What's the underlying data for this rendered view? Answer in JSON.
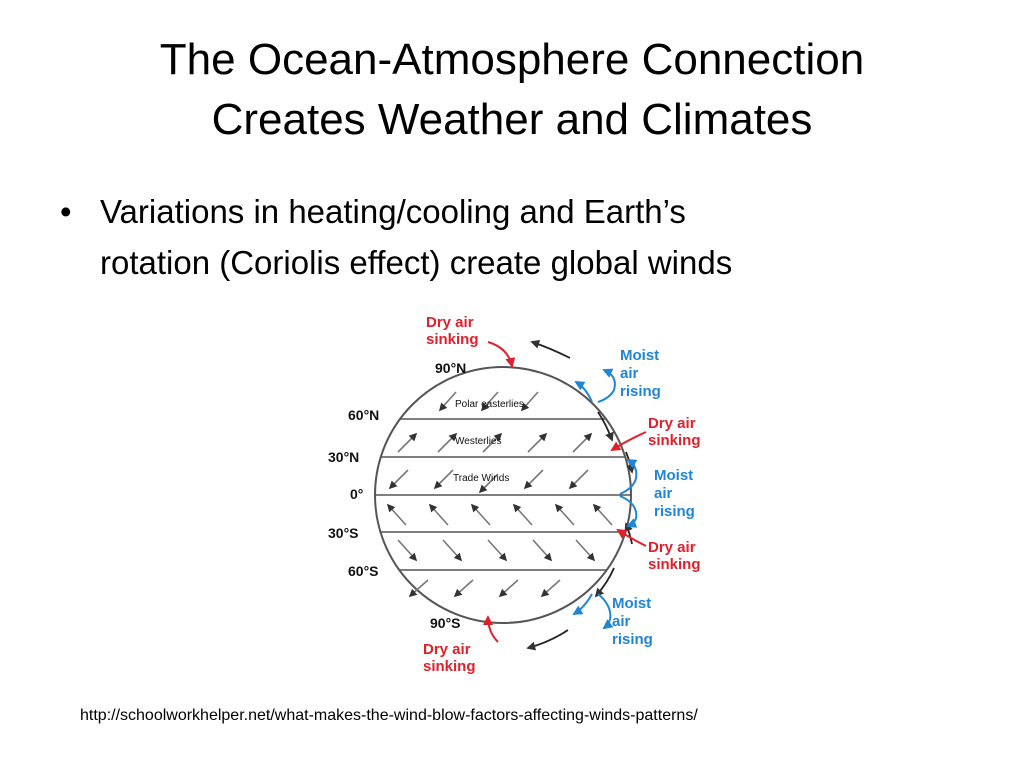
{
  "slide": {
    "title_line1": "The Ocean-Atmosphere Connection",
    "title_line2": "Creates Weather and Climates",
    "bullets": [
      {
        "line1": "Variations in heating/cooling and Earth’s",
        "line2": "rotation (Coriolis effect) create global winds"
      }
    ],
    "source_url": "http://schoolworkhelper.net/what-makes-the-wind-blow-factors-affecting-winds-patterns/"
  },
  "diagram": {
    "latitudes": [
      "90°N",
      "60°N",
      "30°N",
      "0°",
      "30°S",
      "60°S",
      "90°S"
    ],
    "belts": [
      "Polar easterlies",
      "Westerlies",
      "Trade Winds"
    ],
    "dry_air": [
      "Dry air",
      "sinking"
    ],
    "moist_air": [
      "Moist",
      "air",
      "rising"
    ],
    "colors": {
      "dry": "#e0202a",
      "moist": "#1f86d6",
      "globe": "#555555"
    }
  }
}
